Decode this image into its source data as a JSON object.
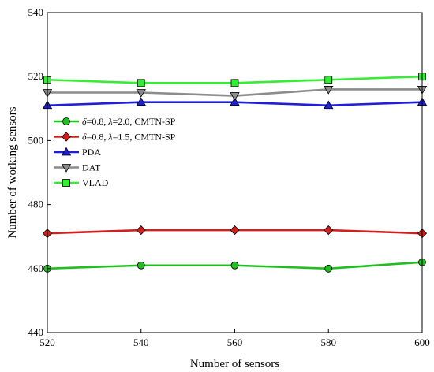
{
  "chart_data": {
    "type": "line",
    "xlabel": "Number of sensors",
    "ylabel": "Number of working sensors",
    "xlim": [
      520,
      600
    ],
    "ylim": [
      440,
      540
    ],
    "x": [
      520,
      540,
      560,
      580,
      600
    ],
    "xticks": [
      "520",
      "540",
      "560",
      "580",
      "600"
    ],
    "yticks": [
      "440",
      "460",
      "480",
      "500",
      "520",
      "540"
    ],
    "grid": false,
    "legend_position": "center-left",
    "series": [
      {
        "name": "δ=0.8, λ=2.0, CMTN-SP",
        "legend_parts": [
          [
            "δ",
            true
          ],
          [
            "=0.8, ",
            false
          ],
          [
            "λ",
            true
          ],
          [
            "=2.0, CMTN-SP",
            false
          ]
        ],
        "color": "#1fbf1f",
        "marker": "circle",
        "values": [
          460,
          461,
          461,
          460,
          462
        ]
      },
      {
        "name": "δ=0.8, λ=1.5, CMTN-SP",
        "legend_parts": [
          [
            "δ",
            true
          ],
          [
            "=0.8, ",
            false
          ],
          [
            "λ",
            true
          ],
          [
            "=1.5, CMTN-SP",
            false
          ]
        ],
        "color": "#d11f1f",
        "marker": "diamond",
        "values": [
          471,
          472,
          472,
          472,
          471
        ]
      },
      {
        "name": "PDA",
        "legend_parts": [
          [
            "PDA",
            false
          ]
        ],
        "color": "#1f1fd9",
        "marker": "triangle-up",
        "values": [
          511,
          512,
          512,
          511,
          512
        ]
      },
      {
        "name": "DAT",
        "legend_parts": [
          [
            "DAT",
            false
          ]
        ],
        "color": "#8c8c8c",
        "marker": "triangle-down",
        "values": [
          515,
          515,
          514,
          516,
          516
        ]
      },
      {
        "name": "VLAD",
        "legend_parts": [
          [
            "VLAD",
            false
          ]
        ],
        "color": "#33ee33",
        "marker": "square",
        "values": [
          519,
          518,
          518,
          519,
          520
        ]
      }
    ]
  }
}
